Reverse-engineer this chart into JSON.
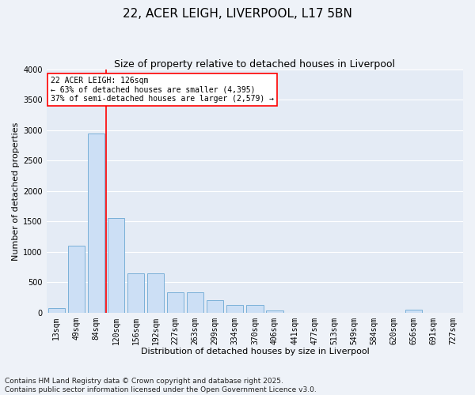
{
  "title": "22, ACER LEIGH, LIVERPOOL, L17 5BN",
  "subtitle": "Size of property relative to detached houses in Liverpool",
  "xlabel": "Distribution of detached houses by size in Liverpool",
  "ylabel": "Number of detached properties",
  "categories": [
    "13sqm",
    "49sqm",
    "84sqm",
    "120sqm",
    "156sqm",
    "192sqm",
    "227sqm",
    "263sqm",
    "299sqm",
    "334sqm",
    "370sqm",
    "406sqm",
    "441sqm",
    "477sqm",
    "513sqm",
    "549sqm",
    "584sqm",
    "620sqm",
    "656sqm",
    "691sqm",
    "727sqm"
  ],
  "values": [
    75,
    1100,
    2950,
    1550,
    650,
    650,
    340,
    340,
    200,
    130,
    130,
    30,
    0,
    0,
    0,
    0,
    0,
    0,
    50,
    0,
    0
  ],
  "bar_color": "#ccdff5",
  "bar_edge_color": "#7ab0d8",
  "vline_x_index": 3,
  "vline_color": "red",
  "annotation_text": "22 ACER LEIGH: 126sqm\n← 63% of detached houses are smaller (4,395)\n37% of semi-detached houses are larger (2,579) →",
  "annotation_box_color": "white",
  "annotation_box_edge_color": "red",
  "ylim": [
    0,
    4000
  ],
  "yticks": [
    0,
    500,
    1000,
    1500,
    2000,
    2500,
    3000,
    3500,
    4000
  ],
  "footnote": "Contains HM Land Registry data © Crown copyright and database right 2025.\nContains public sector information licensed under the Open Government Licence v3.0.",
  "background_color": "#eef2f8",
  "axes_background_color": "#e4ebf5",
  "grid_color": "white",
  "title_fontsize": 11,
  "subtitle_fontsize": 9,
  "label_fontsize": 8,
  "tick_fontsize": 7,
  "footnote_fontsize": 6.5,
  "annotation_fontsize": 7
}
